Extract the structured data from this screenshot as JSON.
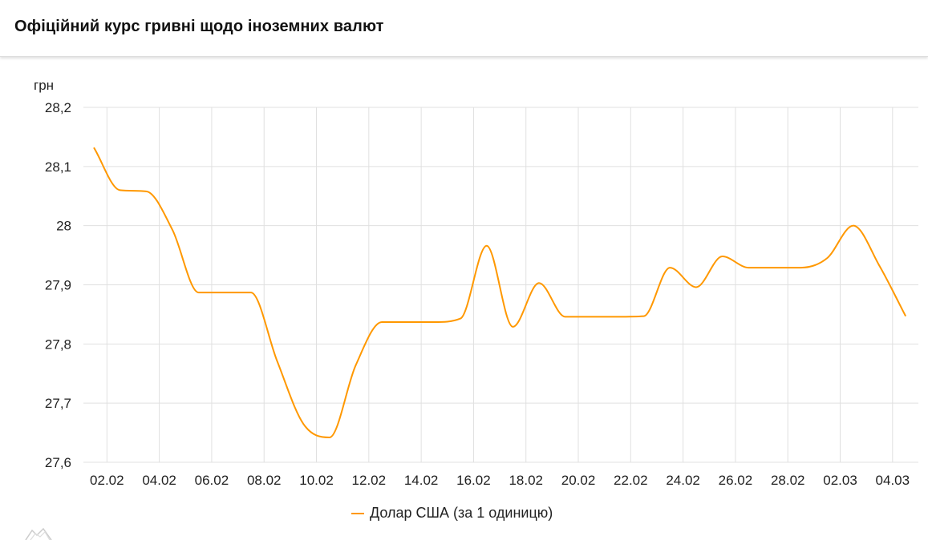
{
  "header": {
    "title": "Офіційний курс гривні щодо іноземних валют"
  },
  "chart_data": {
    "type": "line",
    "title": "",
    "ylabel": "грн",
    "xlabel": "",
    "ylim": [
      27.6,
      28.2
    ],
    "yticks": [
      "28,2",
      "28,1",
      "28",
      "27,9",
      "27,8",
      "27,7",
      "27,6"
    ],
    "ytick_values": [
      28.2,
      28.1,
      28.0,
      27.9,
      27.8,
      27.7,
      27.6
    ],
    "xticks": [
      "02.02",
      "04.02",
      "06.02",
      "08.02",
      "10.02",
      "12.02",
      "14.02",
      "16.02",
      "18.02",
      "20.02",
      "22.02",
      "24.02",
      "26.02",
      "28.02",
      "02.03",
      "04.03"
    ],
    "grid": true,
    "legend_position": "bottom",
    "x": [
      "01.02",
      "02.02",
      "03.02",
      "04.02",
      "05.02",
      "06.02",
      "07.02",
      "08.02",
      "09.02",
      "10.02",
      "11.02",
      "12.02",
      "13.02",
      "14.02",
      "15.02",
      "16.02",
      "17.02",
      "18.02",
      "19.02",
      "20.02",
      "21.02",
      "22.02",
      "23.02",
      "24.02",
      "25.02",
      "26.02",
      "27.02",
      "28.02",
      "01.03",
      "02.03",
      "03.03",
      "04.03"
    ],
    "series": [
      {
        "name": "Долар США (за 1 одиницю)",
        "color": "#ff9800",
        "values": [
          28.132,
          28.06,
          28.058,
          27.993,
          27.887,
          27.887,
          27.887,
          27.771,
          27.665,
          27.642,
          27.764,
          27.837,
          27.837,
          27.837,
          27.843,
          27.966,
          27.829,
          27.903,
          27.846,
          27.846,
          27.846,
          27.847,
          27.929,
          27.896,
          27.948,
          27.929,
          27.929,
          27.929,
          27.945,
          28.0,
          27.932,
          27.847
        ]
      }
    ]
  }
}
